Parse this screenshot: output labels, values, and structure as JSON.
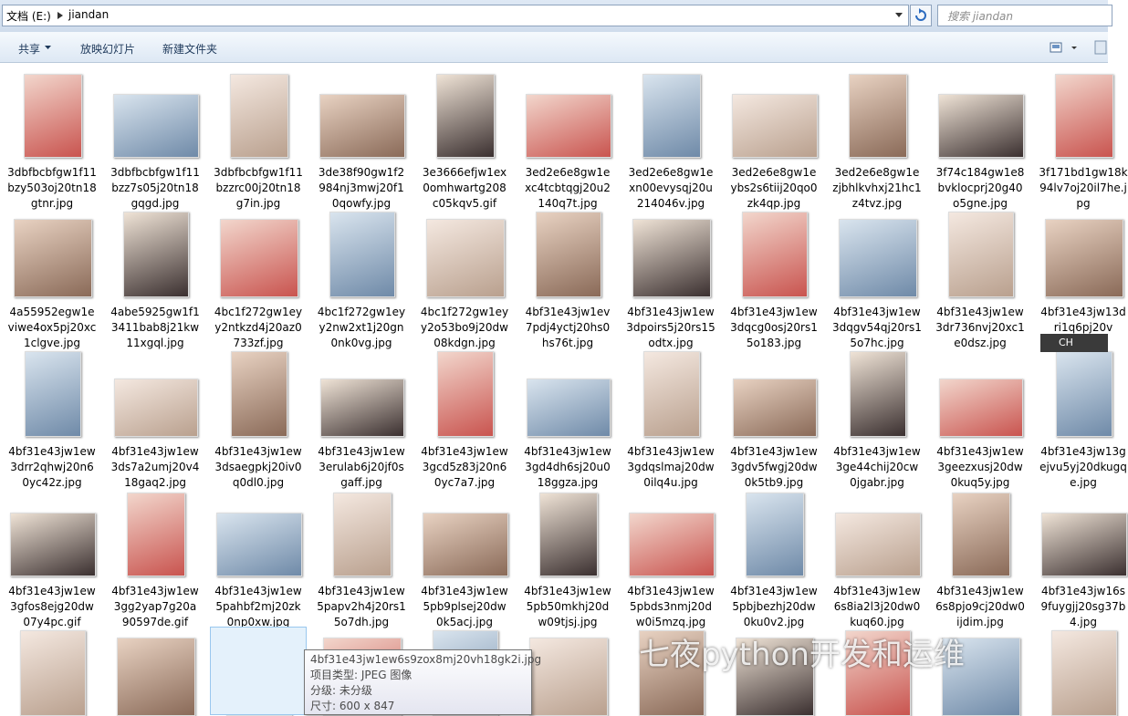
{
  "address_bar": {
    "path": [
      "文档 (E:)",
      "jiandan"
    ]
  },
  "search": {
    "placeholder": "搜索 jiandan"
  },
  "toolbar": [
    "共享",
    "放映幻灯片",
    "新建文件夹"
  ],
  "files": [
    [
      "3dbfbcbfgw1f11bzy503oj20tn18gtnr.jpg",
      "3dbfbcbfgw1f11bzz7s05j20tn18gqgd.jpg",
      "3dbfbcbfgw1f11bzzrc00j20tn18g7in.jpg",
      "3de38f90gw1f2984nj3mwj20f10qowfy.jpg",
      "3e3666efjw1ex0omhwartg208c05kqv5.gif",
      "3ed2e6e8gw1exc4tcbtqgj20u2140q7t.jpg",
      "3ed2e6e8gw1exn00evysqj20u214046v.jpg",
      "3ed2e6e8gw1eybs2s6tiij20qo0zk4qp.jpg",
      "3ed2e6e8gw1ezjbhlkvhxj21hc1z4tvz.jpg",
      "3f74c184gw1e8bvklocprj20g40o5gne.jpg",
      "3f171bd1gw18k94lv7oj20il7he.jpg"
    ],
    [
      "4a55952egw1eviwe4ox5pj20xc1clgve.jpg",
      "4abe5925gw1f13411bab8j21kw11xgql.jpg",
      "4bc1f272gw1eyy2ntkzd4j20az0733zf.jpg",
      "4bc1f272gw1eyy2nw2xt1j20gn0nk0vg.jpg",
      "4bc1f272gw1eyy2o53bo9j20dw08kdgn.jpg",
      "4bf31e43jw1ev7pdj4yctj20hs0hs76t.jpg",
      "4bf31e43jw1ew3dpoirs5j20rs15odtx.jpg",
      "4bf31e43jw1ew3dqcg0osj20rs15o183.jpg",
      "4bf31e43jw1ew3dqgv54qj20rs15o7hc.jpg",
      "4bf31e43jw1ew3dr736nvj20xc1e0dsz.jpg",
      "4bf31e43jw13dri1q6pj20v"
    ],
    [
      "4bf31e43jw1ew3drr2qhwj20n60yc42z.jpg",
      "4bf31e43jw1ew3ds7a2umj20v418gaq2.jpg",
      "4bf31e43jw1ew3dsaegpkj20iv0q0dl0.jpg",
      "4bf31e43jw1ew3erulab6j20jf0sgaff.jpg",
      "4bf31e43jw1ew3gcd5z83j20n60yc7a7.jpg",
      "4bf31e43jw1ew3gd4dh6sj20u018ggza.jpg",
      "4bf31e43jw1ew3gdqslmaj20dw0ilq4u.jpg",
      "4bf31e43jw1ew3gdv5fwgj20dw0k5tb9.jpg",
      "4bf31e43jw1ew3ge44chij20cw0jgabr.jpg",
      "4bf31e43jw1ew3geezxusj20dw0kuq5y.jpg",
      "4bf31e43jw13gejvu5yj20dkugqe.jpg"
    ],
    [
      "4bf31e43jw1ew3gfos8ejg20dw07y4pc.gif",
      "4bf31e43jw1ew3gg2yap7g20a90597de.gif",
      "4bf31e43jw1ew5pahbf2mj20zk0np0xw.jpg",
      "4bf31e43jw1ew5papv2h4j20rs15o7dh.jpg",
      "4bf31e43jw1ew5pb9plsej20dw0k5acj.jpg",
      "4bf31e43jw1ew5pb50mkhj20dw09tjsj.jpg",
      "4bf31e43jw1ew5pbds3nmj20dw0i5mzq.jpg",
      "4bf31e43jw1ew5pbjbezhj20dw0ku0v2.jpg",
      "4bf31e43jw1ew6s8ia2l3j20dw0kuq60.jpg",
      "4bf31e43jw1ew6s8pjo9cj20dw0ijdim.jpg",
      "4bf31e43jw16s9fuygjj20sg37b4.jpg"
    ]
  ],
  "tooltip": {
    "name": "4bf31e43jw1ew6s9zox8mj20vh18gk2i.jpg",
    "lines": [
      "项目类型: JPEG 图像",
      "分级: 未分级",
      "尺寸: 600 x 847"
    ]
  },
  "ime": "CH",
  "watermark": "七夜python开发和运维"
}
